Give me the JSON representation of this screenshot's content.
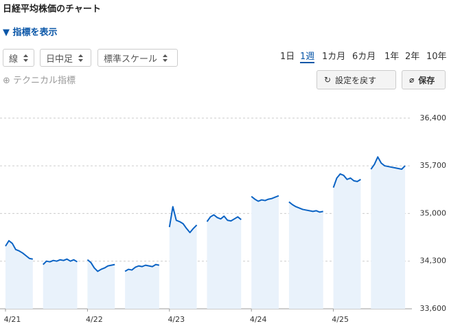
{
  "header": {
    "title": "日経平均株価のチャート",
    "toggle": "指標を表示"
  },
  "controls": {
    "selects": [
      "線",
      "日中足",
      "標準スケール"
    ],
    "periods": [
      "1日",
      "1週",
      "1カ月",
      "6カ月",
      "1年",
      "2年",
      "10年"
    ],
    "active_period": 1,
    "technical": "テクニカル指標",
    "buttons": [
      "設定を戻す",
      "保存"
    ]
  },
  "chart_data": {
    "type": "line",
    "area": true,
    "grid": true,
    "xlim": [
      0,
      120
    ],
    "ylim": [
      33600,
      36650
    ],
    "xticks": [
      {
        "value": 0,
        "label": "4/21"
      },
      {
        "value": 24,
        "label": "4/22"
      },
      {
        "value": 48,
        "label": "4/23"
      },
      {
        "value": 72,
        "label": "4/24"
      },
      {
        "value": 96,
        "label": "4/25"
      }
    ],
    "yticks": [
      {
        "value": 33600,
        "label": "33,600"
      },
      {
        "value": 34300,
        "label": "34,300"
      },
      {
        "value": 35000,
        "label": "35,000"
      },
      {
        "value": 35700,
        "label": "35,700"
      },
      {
        "value": 36400,
        "label": "36,400"
      }
    ],
    "series": [
      {
        "color": "#0b63c4",
        "fill": "#e9f2fb",
        "x": [
          0,
          1,
          2,
          3,
          4,
          5,
          6,
          7,
          8,
          null,
          11,
          12,
          13,
          14,
          15,
          16,
          17,
          18,
          19,
          20,
          21,
          null,
          24,
          25,
          26,
          27,
          28,
          29,
          30,
          31,
          32,
          null,
          35,
          36,
          37,
          38,
          39,
          40,
          41,
          42,
          43,
          44,
          45,
          null,
          48,
          49,
          50,
          51,
          52,
          53,
          54,
          55,
          56,
          null,
          59,
          60,
          61,
          62,
          63,
          64,
          65,
          66,
          67,
          68,
          69,
          null,
          72,
          73,
          74,
          75,
          76,
          77,
          78,
          79,
          80,
          null,
          83,
          84,
          85,
          86,
          87,
          88,
          89,
          90,
          91,
          92,
          93,
          null,
          96,
          97,
          98,
          99,
          100,
          101,
          102,
          103,
          104,
          null,
          107,
          108,
          109,
          110,
          111,
          112,
          113,
          114,
          115,
          116,
          117
        ],
        "values": [
          34520,
          34600,
          34560,
          34470,
          34450,
          34420,
          34380,
          34340,
          34330,
          null,
          34250,
          34300,
          34290,
          34310,
          34300,
          34320,
          34310,
          34330,
          34300,
          34320,
          34290,
          null,
          34320,
          34280,
          34200,
          34150,
          34180,
          34200,
          34230,
          34240,
          34250,
          null,
          34150,
          34180,
          34170,
          34210,
          34230,
          34220,
          34240,
          34230,
          34220,
          34250,
          34240,
          null,
          34800,
          35100,
          34900,
          34880,
          34850,
          34780,
          34720,
          34780,
          34830,
          null,
          34880,
          34950,
          34980,
          34940,
          34920,
          34960,
          34900,
          34890,
          34920,
          34950,
          34910,
          null,
          35250,
          35210,
          35180,
          35200,
          35190,
          35210,
          35220,
          35240,
          35260,
          null,
          35170,
          35130,
          35100,
          35080,
          35060,
          35050,
          35040,
          35030,
          35040,
          35020,
          35030,
          null,
          35380,
          35520,
          35580,
          35560,
          35500,
          35520,
          35480,
          35470,
          35500,
          null,
          35650,
          35720,
          35830,
          35740,
          35700,
          35690,
          35680,
          35670,
          35660,
          35650,
          35700
        ]
      }
    ]
  }
}
